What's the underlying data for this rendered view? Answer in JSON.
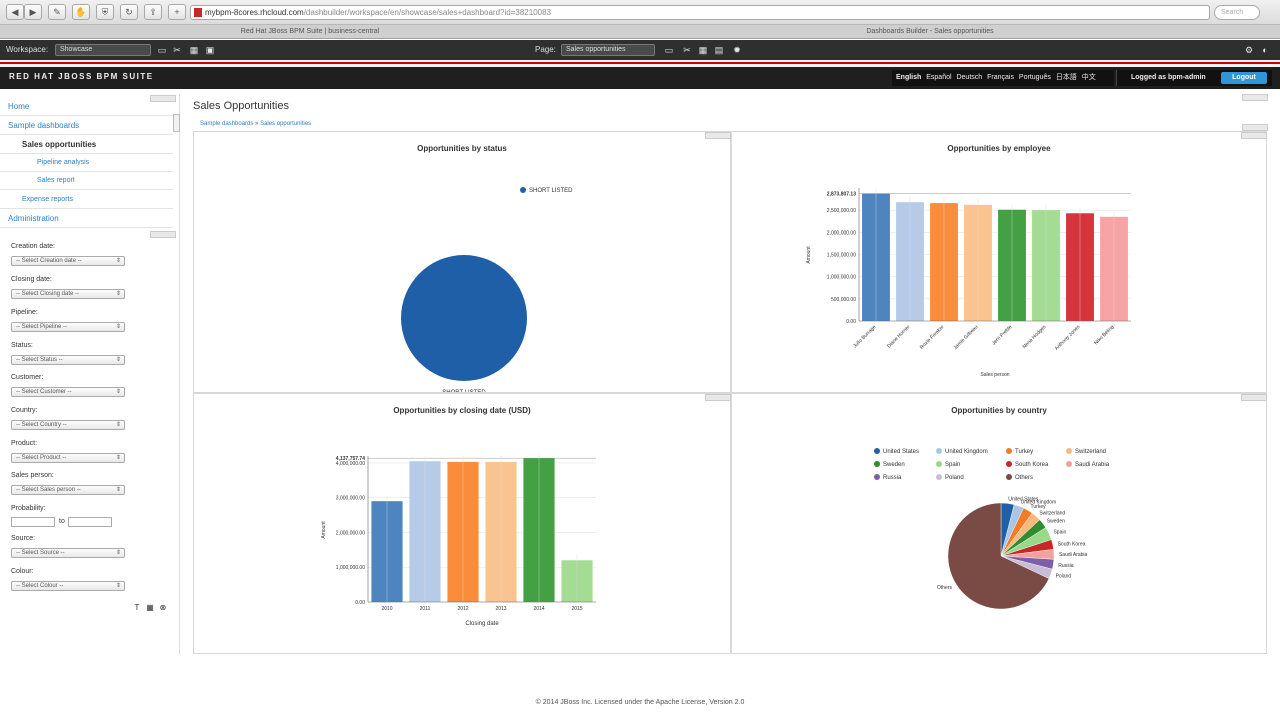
{
  "browser": {
    "url_host": "mybpm-8cores.rhcloud.com",
    "url_path": "/dashbuilder/workspace/en/showcase/sales+dashboard?id=38210083",
    "search_placeholder": "Search",
    "tabs": [
      "Red Hat JBoss BPM Suite | business-central",
      "Dashboards Builder - Sales opportunities"
    ]
  },
  "workspace_toolbar": {
    "workspace_label": "Workspace:",
    "workspace_value": "Showcase",
    "page_label": "Page:",
    "page_value": "Sales opportunities"
  },
  "header": {
    "brand": "RED HAT JBOSS BPM SUITE",
    "languages": [
      "English",
      "Español",
      "Deutsch",
      "Français",
      "Português",
      "日本語",
      "中文"
    ],
    "logged_as": "Logged as bpm-admin",
    "logout": "Logout"
  },
  "nav": {
    "items": [
      {
        "label": "Home"
      },
      {
        "label": "Sample dashboards"
      },
      {
        "label": "Sales opportunities"
      },
      {
        "label": "Pipeline analysis"
      },
      {
        "label": "Sales report"
      },
      {
        "label": "Expense reports"
      },
      {
        "label": "Administration"
      }
    ]
  },
  "filters": [
    {
      "label": "Creation date:",
      "value": "-- Select Creation date --"
    },
    {
      "label": "Closing date:",
      "value": "-- Select Closing date --"
    },
    {
      "label": "Pipeline:",
      "value": "-- Select Pipeline --"
    },
    {
      "label": "Status:",
      "value": "-- Select Status --"
    },
    {
      "label": "Customer:",
      "value": "-- Select Customer --"
    },
    {
      "label": "Country:",
      "value": "-- Select Country --"
    },
    {
      "label": "Product:",
      "value": "-- Select Product --"
    },
    {
      "label": "Sales person:",
      "value": "-- Select Sales person --"
    },
    {
      "label": "Probability:",
      "value": ""
    },
    {
      "label": "Source:",
      "value": "-- Select Source --"
    },
    {
      "label": "Colour:",
      "value": "-- Select Colour --"
    }
  ],
  "probability_to": "to",
  "main": {
    "title": "Sales Opportunities",
    "breadcrumb": [
      "Sample dashboards",
      "Sales opportunities"
    ]
  },
  "chart_data": [
    {
      "type": "pie",
      "title": "Opportunities by status",
      "categories": [
        "SHORT LISTED"
      ],
      "values": [
        100
      ],
      "legend": "top-right",
      "colors": [
        "#1f5fa8"
      ]
    },
    {
      "type": "bar",
      "title": "Opportunities by employee",
      "categories": [
        "Julio Burrage",
        "Diane Horner",
        "Roxie Foraker",
        "Jamie Gilbeau",
        "Jerri Preble",
        "Nena Hodges",
        "Anthony Jones",
        "Niko Beling"
      ],
      "values": [
        2873807.13,
        2680000,
        2660000,
        2620000,
        2510000,
        2500000,
        2430000,
        2350000
      ],
      "max_label": "2,873,807.13",
      "ylabel": "Amount",
      "xlabel": "Sales person",
      "ylim": [
        0,
        3000000
      ],
      "yticks": [
        "0.00",
        "500,000.00",
        "1,000,000.00",
        "1,500,000.00",
        "2,000,000.00",
        "2,500,000.00"
      ],
      "colors": [
        "#4e84c0",
        "#b6cbe8",
        "#f98d3c",
        "#f9c48f",
        "#43a043",
        "#a3dc92",
        "#d6353b",
        "#f6a4a4"
      ]
    },
    {
      "type": "bar",
      "title": "Opportunities by closing date (USD)",
      "categories": [
        "2010",
        "2011",
        "2012",
        "2013",
        "2014",
        "2015"
      ],
      "values": [
        2900000,
        4050000,
        4030000,
        4030000,
        4137757.74,
        1200000
      ],
      "max_label": "4,137,757.74",
      "ylabel": "Amount",
      "xlabel": "Closing date",
      "ylim": [
        0,
        4200000
      ],
      "yticks": [
        "0.00",
        "1,000,000.00",
        "2,000,000.00",
        "3,000,000.00",
        "4,000,000.00"
      ],
      "colors": [
        "#4e84c0",
        "#b6cbe8",
        "#f98d3c",
        "#f9c48f",
        "#43a043",
        "#a3dc92"
      ]
    },
    {
      "type": "pie",
      "title": "Opportunities by country",
      "legend": "top",
      "categories": [
        "United States",
        "United Kingdom",
        "Turkey",
        "Switzerland",
        "Sweden",
        "Spain",
        "South Korea",
        "Saudi Arabia",
        "Russia",
        "Poland",
        "Others"
      ],
      "values": [
        4,
        3,
        3,
        3,
        3,
        4,
        3,
        3,
        3,
        3,
        68
      ],
      "colors": [
        "#1f5fa8",
        "#a9c6e6",
        "#f57b25",
        "#f7b97f",
        "#2f8c2f",
        "#98d98a",
        "#c62828",
        "#f2a0a0",
        "#7d5fa8",
        "#c8bcd9",
        "#7a4a45"
      ]
    }
  ]
}
